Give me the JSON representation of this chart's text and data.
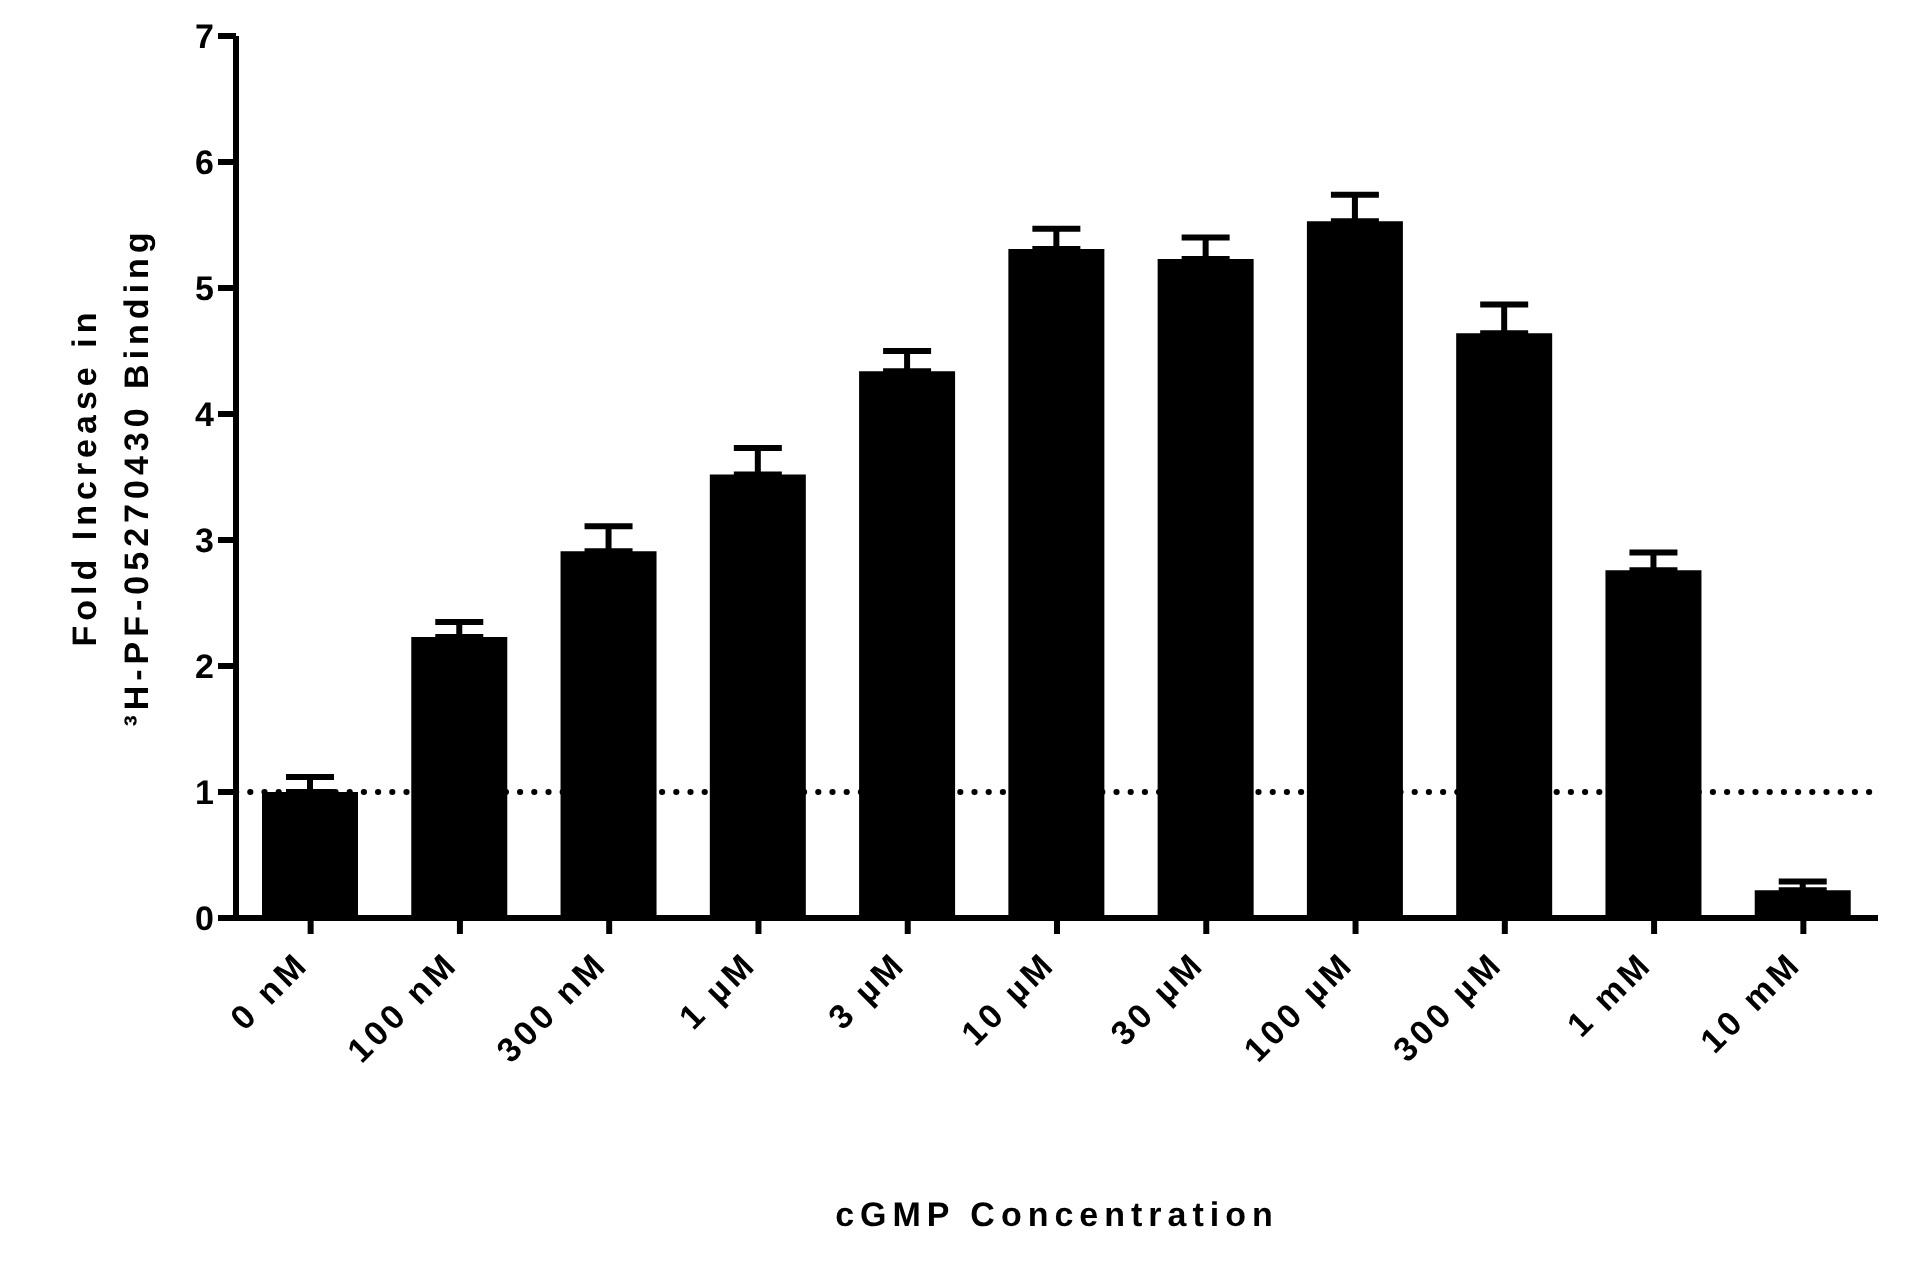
{
  "chart_data": {
    "type": "bar",
    "xlabel": "cGMP Concentration",
    "ylabel": "Fold Increase in\n³H-PF-05270430 Binding",
    "categories": [
      "0 nM",
      "100 nM",
      "300 nM",
      "1 µM",
      "3 µM",
      "10 µM",
      "30 µM",
      "100 µM",
      "300 µM",
      "1 mM",
      "10 mM"
    ],
    "values": [
      1.0,
      2.23,
      2.91,
      3.52,
      4.34,
      5.31,
      5.23,
      5.53,
      4.64,
      2.76,
      0.22
    ],
    "errors": [
      [
        1.0,
        1.12
      ],
      [
        2.23,
        2.35
      ],
      [
        2.91,
        3.11
      ],
      [
        3.52,
        3.73
      ],
      [
        4.34,
        4.5
      ],
      [
        5.31,
        5.47
      ],
      [
        5.23,
        5.4
      ],
      [
        5.53,
        5.74
      ],
      [
        4.64,
        4.87
      ],
      [
        2.76,
        2.9
      ],
      [
        0.22,
        0.29
      ]
    ],
    "color": "#000000",
    "ylim": [
      0,
      7
    ],
    "yticks": [
      0,
      1,
      2,
      3,
      4,
      5,
      6,
      7
    ],
    "ref_lines": [
      {
        "axis": "y",
        "value": 1,
        "line_style": "dotted",
        "color": "#000000"
      }
    ],
    "grid": false,
    "legend": false
  }
}
